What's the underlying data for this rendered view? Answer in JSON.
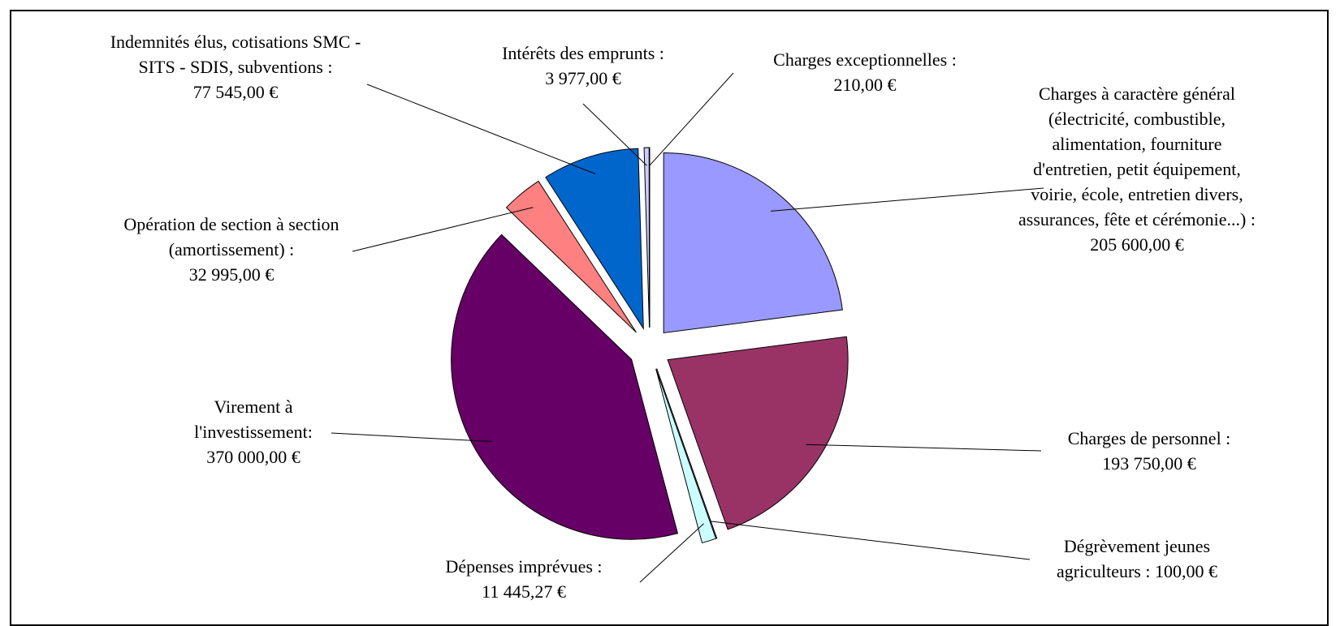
{
  "chart_data": {
    "type": "pie",
    "categories": [
      "Charges à caractère général (électricité, combustible, alimentation, fourniture d'entretien, petit équipement, voirie, école, entretien divers, assurances, fête et cérémonie...) :",
      "Charges de personnel :",
      "Dégrèvement jeunes agriculteurs :",
      "Dépenses imprévues :",
      "Virement à l'investissement:",
      "Opération de section à section (amortissement) :",
      "Indemnités élus, cotisations SMC - SITS - SDIS, subventions :",
      "Intérêts des emprunts :",
      "Charges exceptionnelles :"
    ],
    "values": [
      205600,
      193750,
      100,
      11445.27,
      370000,
      32995,
      77545,
      3977,
      210
    ],
    "value_labels": [
      "205 600,00 €",
      "193 750,00 €",
      "100,00 €",
      "11 445,27 €",
      "370 000,00 €",
      "32 995,00 €",
      "77 545,00 €",
      "3 977,00 €",
      "210,00 €"
    ],
    "colors": [
      "#9999ff",
      "#993366",
      "#ffffcc",
      "#ccffff",
      "#660066",
      "#ff8080",
      "#0066cc",
      "#ccccff",
      "#000080"
    ]
  }
}
